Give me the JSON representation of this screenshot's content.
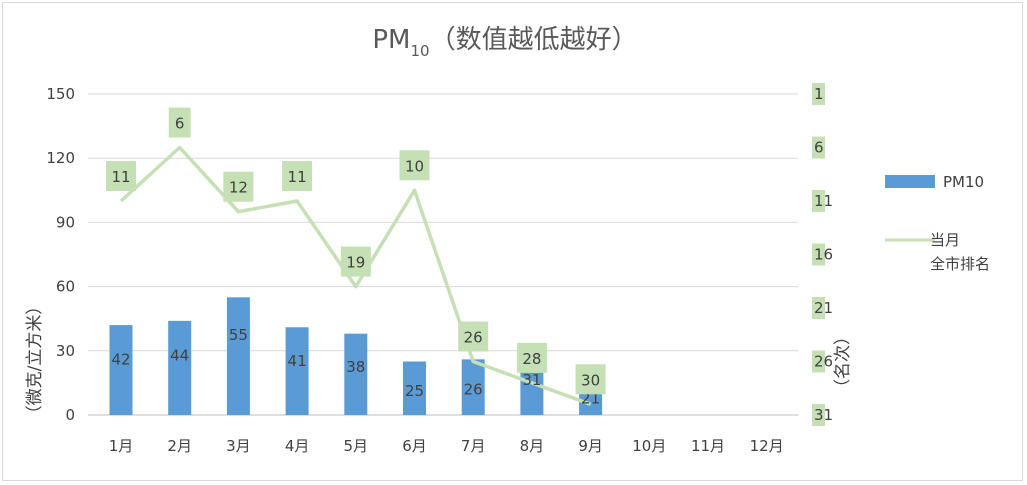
{
  "chart_data": {
    "type": "bar",
    "title": "PM",
    "title_subscript": "10",
    "title_suffix": "（数值越低越好）",
    "categories": [
      "1月",
      "2月",
      "3月",
      "4月",
      "5月",
      "6月",
      "7月",
      "8月",
      "9月",
      "10月",
      "11月",
      "12月"
    ],
    "series": [
      {
        "name": "PM10",
        "type": "bar",
        "axis": "left",
        "color": "#5b9bd5",
        "values": [
          42,
          44,
          55,
          41,
          38,
          25,
          26,
          31,
          21,
          null,
          null,
          null
        ],
        "labels": [
          "42",
          "44",
          "55",
          "41",
          "38",
          "25",
          "26",
          "31",
          "21",
          "",
          "",
          ""
        ]
      },
      {
        "name": "当月\n全市排名",
        "name_lines": [
          "当月",
          "全市排名"
        ],
        "type": "line",
        "axis": "right",
        "color": "#c5e0b4",
        "values": [
          11,
          6,
          12,
          11,
          19,
          10,
          26,
          28,
          30,
          null,
          null,
          null
        ],
        "labels": [
          "11",
          "6",
          "12",
          "11",
          "19",
          "10",
          "26",
          "28",
          "30",
          "",
          "",
          ""
        ]
      }
    ],
    "ylabel": "（微克/立方米）",
    "y2label": "（名次）",
    "ylim": [
      0,
      150
    ],
    "yticks": [
      "0",
      "30",
      "60",
      "90",
      "120",
      "150"
    ],
    "y2lim": [
      1,
      31
    ],
    "y2_reversed": true,
    "y2ticks": [
      "1",
      "6",
      "11",
      "16",
      "21",
      "26",
      "31"
    ],
    "grid": true,
    "legend_position": "right"
  }
}
